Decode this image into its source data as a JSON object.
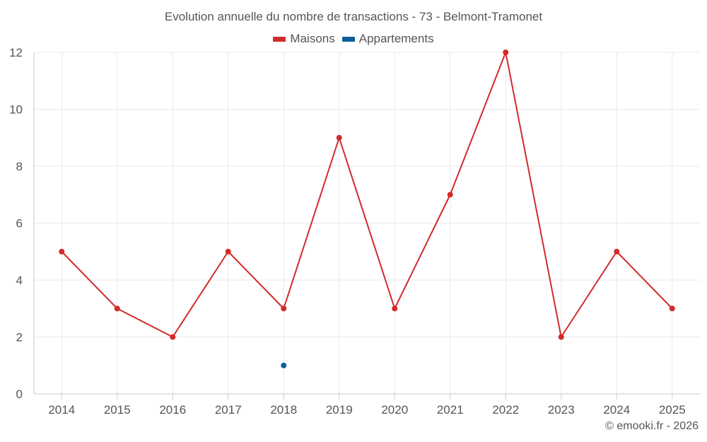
{
  "chart": {
    "title": "Evolution annuelle du nombre de transactions - 73 - Belmont-Tramonet",
    "credits": "© emooki.fr - 2026"
  },
  "colors": {
    "maisons": "#d22b2b",
    "appartements": "#0b5f9e",
    "grid": "#e9e9e9",
    "axis": "#cccccc",
    "text": "#555555"
  },
  "chart_data": {
    "type": "line",
    "title": "Evolution annuelle du nombre de transactions - 73 - Belmont-Tramonet",
    "xlabel": "",
    "ylabel": "",
    "categories": [
      "2014",
      "2015",
      "2016",
      "2017",
      "2018",
      "2019",
      "2020",
      "2021",
      "2022",
      "2023",
      "2024",
      "2025"
    ],
    "ylim": [
      0,
      12
    ],
    "yticks": [
      0,
      2,
      4,
      6,
      8,
      10,
      12
    ],
    "grid": true,
    "legend_position": "top-center",
    "series": [
      {
        "name": "Maisons",
        "color": "#d22b2b",
        "values": [
          5,
          3,
          2,
          5,
          3,
          9,
          3,
          7,
          12,
          2,
          5,
          3
        ]
      },
      {
        "name": "Appartements",
        "color": "#0b5f9e",
        "values": [
          null,
          null,
          null,
          null,
          1,
          null,
          null,
          null,
          null,
          null,
          null,
          null
        ]
      }
    ]
  }
}
